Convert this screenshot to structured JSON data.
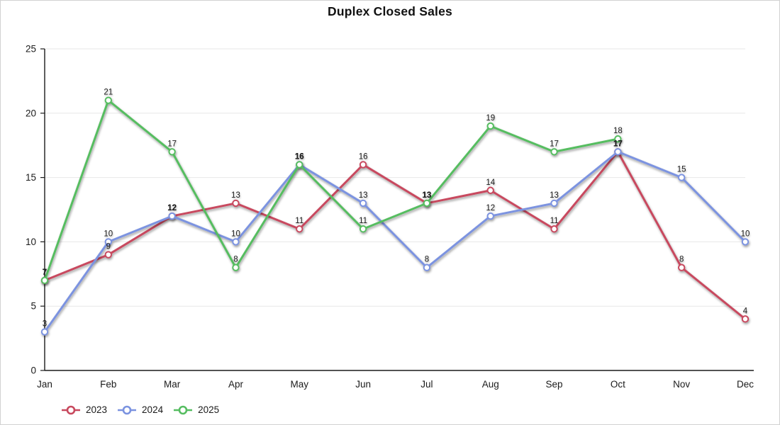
{
  "chart_data": {
    "type": "line",
    "title": "Duplex Closed Sales",
    "categories": [
      "Jan",
      "Feb",
      "Mar",
      "Apr",
      "May",
      "Jun",
      "Jul",
      "Aug",
      "Sep",
      "Oct",
      "Nov",
      "Dec"
    ],
    "series": [
      {
        "name": "2023",
        "color": "#c8495e",
        "values": [
          7,
          9,
          12,
          13,
          11,
          16,
          13,
          14,
          11,
          17,
          8,
          4
        ]
      },
      {
        "name": "2024",
        "color": "#7b93e0",
        "values": [
          3,
          10,
          12,
          10,
          16,
          13,
          8,
          12,
          13,
          17,
          15,
          10
        ]
      },
      {
        "name": "2025",
        "color": "#56bd61",
        "values": [
          7,
          21,
          17,
          8,
          16,
          11,
          13,
          19,
          17,
          18,
          null,
          null
        ]
      }
    ],
    "ylim": [
      0,
      25
    ],
    "yticks": [
      0,
      5,
      10,
      15,
      20,
      25
    ],
    "xlabel": "",
    "ylabel": "",
    "grid": true,
    "data_labels": true,
    "legend": [
      "2023",
      "2024",
      "2025"
    ],
    "legend_position": "bottom-left",
    "marker": "open-circle",
    "axis_color": "#1a1a1a",
    "grid_color": "#e7e7e7"
  }
}
